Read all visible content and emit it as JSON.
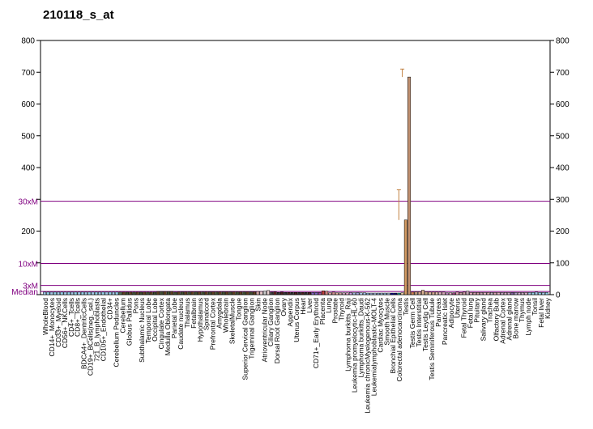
{
  "chart_data": {
    "type": "bar",
    "title": "210118_s_at",
    "xlabel": "",
    "ylabel": "",
    "ylim": [
      0,
      800
    ],
    "y_ticks": [
      0,
      100,
      200,
      300,
      400,
      500,
      600,
      700,
      800
    ],
    "y_tick_labels": [
      "",
      "",
      "200",
      "",
      "400",
      "500",
      "600",
      "700",
      "800"
    ],
    "y_ticks_right": [
      "0",
      "100",
      "200",
      "300",
      "400",
      "500",
      "600",
      "700",
      "800"
    ],
    "reference_lines": [
      {
        "label": "30xM",
        "value": 294
      },
      {
        "label": "10xM",
        "value": 98
      },
      {
        "label": "3xM",
        "value": 29
      },
      {
        "label": "Median",
        "value": 10
      }
    ],
    "ref_line_color": "#800080",
    "labeled_categories": [
      "WholeBlood",
      "CD14+_Monocytes",
      "CD33+_Myeloid",
      "CD56+_NKCells",
      "CD4+_Tcells",
      "CD8+_Tcells",
      "BDCA4+_DentriticCells",
      "CD19+_BCells(neg._sel.)",
      "721_B_lymphoblasts",
      "CD105+_Endothelial",
      "CD34+",
      "Cerebellum Peduncles",
      "Cerebellum",
      "Globus Pallidus",
      "Pons",
      "Subthalamic Nucleus",
      "Temporal Lobe",
      "Occipital Lobe",
      "Cingulate Cortex",
      "Medulla Oblongata",
      "Parietal Lobe",
      "Caudate nucleus",
      "Thalamus",
      "Fetalbrain",
      "Hypothalamus",
      "Spinalcord",
      "Prefrontal Cortex",
      "Amygdala",
      "Wholebrain",
      "SkeletalMuscle",
      "Tongue",
      "Superior Cervical Ganglion",
      "Trigeminal Ganglion",
      "Skin",
      "Atrioventricular Node",
      "Ciliary Ganglion",
      "Dorsal Root Ganglion",
      "Ovary",
      "Appendix",
      "Uterus Corpus",
      "Heart",
      "Liver",
      "CD71+_Early Erythroid",
      "Placenta",
      "Lung",
      "Prostate",
      "Thyroid",
      "Lymphoma burkitts_Raji",
      "Leukemia promyelocytic-HL-60",
      "Lymphoma burkitts_Daudi",
      "Leukemia chronicMyelogenous-K-562",
      "Leukemialymphoblastic-MOLT-4",
      "Cardiac Myocytes",
      "Smooth Muscle",
      "Bronchial Epithelial Cells",
      "Colorectal adenocarcinoma",
      "Testis",
      "Testis Germ Cell",
      "Testis Interstitial",
      "Testis Leydig Cell",
      "Testis Seminiferous Tubule",
      "Pancreas",
      "Pancreatic Islet",
      "Adipocyte",
      "Uterus",
      "Fetal Thyroid",
      "Fetal lung",
      "Pituitary",
      "Salivary gland",
      "Trachea",
      "Olfactory Bulb",
      "Adrenal Cortex",
      "Adrenal gland",
      "Bone marrow",
      "Thymus",
      "Lymph node",
      "Tonsil",
      "Fetal liver",
      "Kidney"
    ],
    "series": [
      {
        "values": [
          8,
          8,
          8,
          8,
          8,
          8,
          8,
          8,
          8,
          8,
          8,
          8,
          8,
          8,
          8,
          8,
          8,
          8,
          8,
          8,
          8,
          8,
          8,
          8,
          8,
          8,
          8,
          8,
          8,
          8,
          8,
          8,
          8,
          10,
          10,
          10,
          10,
          10,
          8,
          9,
          9,
          9,
          9,
          9,
          9,
          9,
          9,
          9,
          9,
          9,
          9,
          9,
          9,
          9,
          9,
          9,
          9,
          9,
          9,
          9,
          9,
          9,
          10,
          10,
          11,
          13,
          8,
          9,
          7,
          8,
          7,
          7,
          7,
          7,
          7,
          7,
          7,
          7,
          7,
          7,
          7,
          12,
          11,
          6,
          8,
          6,
          6,
          6,
          6,
          7,
          6,
          7,
          6,
          6,
          5,
          5,
          5,
          5,
          5,
          5,
          5,
          5,
          5,
          5,
          6,
          235,
          685,
          8,
          9,
          9,
          14,
          9,
          8,
          8,
          8,
          8,
          8,
          6,
          6,
          6,
          8,
          7,
          8,
          11,
          7,
          7,
          7,
          7,
          7,
          7,
          7,
          7,
          7,
          7,
          7,
          7,
          7,
          7,
          7,
          7,
          7,
          7,
          7,
          8,
          7,
          7,
          7
        ],
        "colors": [
          "#a0c8e8",
          "#90d0e8",
          "#a0c8e8",
          "#90d0e8",
          "#a0c8e8",
          "#90d0e8",
          "#a0c8e8",
          "#90d0e8",
          "#a0c8e8",
          "#90d0e8",
          "#a0c8e8",
          "#90d0e8",
          "#a0c8e8",
          "#90d0e8",
          "#a0c8e8",
          "#90d0e8",
          "#a0c8e8",
          "#90d0e8",
          "#a0c8e8",
          "#90d0e8",
          "#a0c8e8",
          "#90d0e8",
          "#507050",
          "#604020",
          "#405030",
          "#604020",
          "#405030",
          "#604020",
          "#405030",
          "#604020",
          "#405030",
          "#604020",
          "#405030",
          "#604020",
          "#405030",
          "#604020",
          "#405030",
          "#604020",
          "#405030",
          "#604020",
          "#405030",
          "#604020",
          "#405030",
          "#604020",
          "#405030",
          "#604020",
          "#405030",
          "#604020",
          "#405030",
          "#604020",
          "#405030",
          "#604020",
          "#405030",
          "#604020",
          "#405030",
          "#604020",
          "#405030",
          "#604020",
          "#405030",
          "#604020",
          "#405030",
          "#604020",
          "#d0a0a0",
          "#e8c8c8",
          "#c8c8c8",
          "#e8d0d0",
          "#404040",
          "#602020",
          "#303030",
          "#502020",
          "#303030",
          "#502020",
          "#303030",
          "#502020",
          "#303030",
          "#502020",
          "#303030",
          "#502020",
          "#8060c0",
          "#8060c0",
          "#a040a0",
          "#c04040",
          "#d08080",
          "#e0a0a0",
          "#d09090",
          "#e8b0a0",
          "#d0a0a0",
          "#c8a0b8",
          "#e8a0c8",
          "#c8a0e0",
          "#a0b8e0",
          "#a0a0d8",
          "#b0d0f0",
          "#a0c0e8",
          "#90c0e8",
          "#a0b8e0",
          "#b0c8f0",
          "#90b0d8",
          "#a0c8e8",
          "#90b8e0",
          "#b0c8e8",
          "#0000a0",
          "#000080",
          "#20a090",
          "#e8c8a0",
          "#d09860",
          "#c09070",
          "#d08050",
          "#c09878",
          "#d0a088",
          "#d8b090",
          "#c8a080",
          "#e0b8a0",
          "#d8a890",
          "#e8c0b0",
          "#e0b0c0",
          "#d8a8b8",
          "#c080c0",
          "#e8b0c8",
          "#a04080",
          "#e0a0b0",
          "#c898a0",
          "#d0a0a8",
          "#c0a0b0",
          "#e0a8b8",
          "#d098a8",
          "#d8a0a8",
          "#c8a0b0",
          "#e0b0c0",
          "#d8a8b0",
          "#c0b0c0",
          "#d8a0b0",
          "#e0b0c0",
          "#c0a0c0",
          "#d0a8c0",
          "#c8a8c8",
          "#8060a0",
          "#b0a0c8",
          "#d0b0d0",
          "#c0a8c0",
          "#d8b0c8"
        ]
      }
    ],
    "error_bars": [
      {
        "bar_index": 103,
        "low": 235,
        "high": 330
      },
      {
        "bar_index": 104,
        "low": 685,
        "high": 710
      }
    ]
  }
}
